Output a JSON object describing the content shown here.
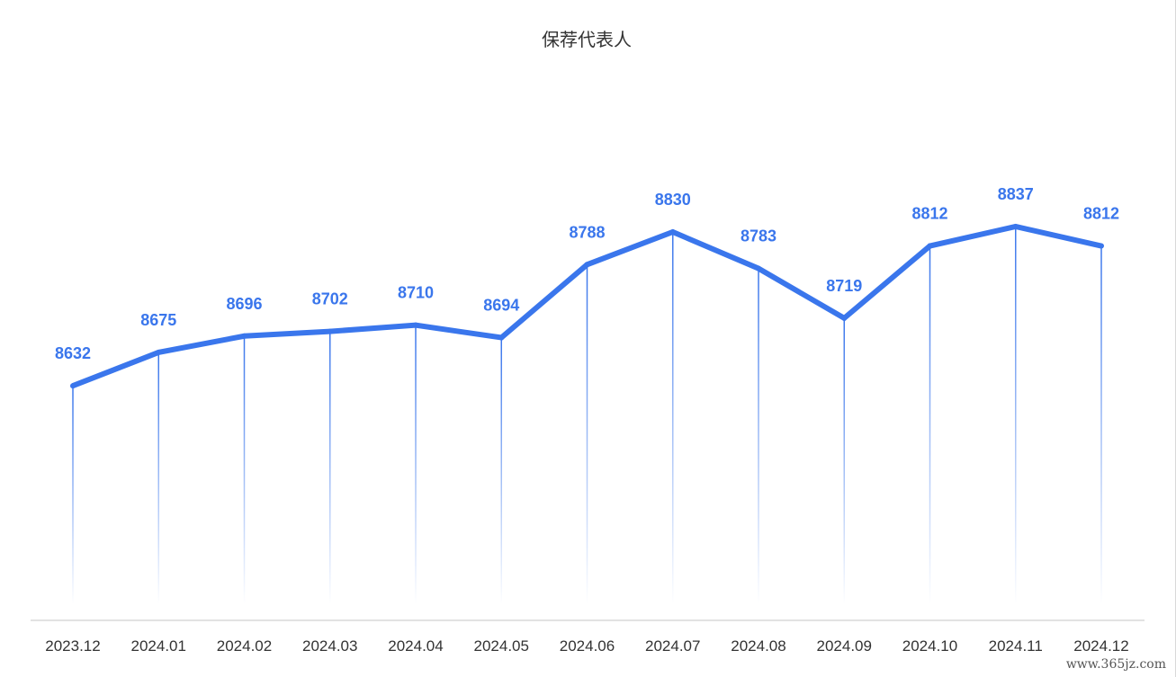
{
  "chart_data": {
    "type": "line",
    "title": "保荐代表人",
    "categories": [
      "2023.12",
      "2024.01",
      "2024.02",
      "2024.03",
      "2024.04",
      "2024.05",
      "2024.06",
      "2024.07",
      "2024.08",
      "2024.09",
      "2024.10",
      "2024.11",
      "2024.12"
    ],
    "values": [
      8632,
      8675,
      8696,
      8702,
      8710,
      8694,
      8788,
      8830,
      8783,
      8719,
      8812,
      8837,
      8812
    ],
    "ylim": [
      8330,
      8955
    ],
    "grid": false,
    "legend": "none",
    "xlabel": "",
    "ylabel": ""
  },
  "colors": {
    "line": "#3a76ec",
    "label": "#3a76ec",
    "axis": "#d9d9d9",
    "drop_line": "#3a76ec"
  },
  "watermark": "www.365jz.com"
}
